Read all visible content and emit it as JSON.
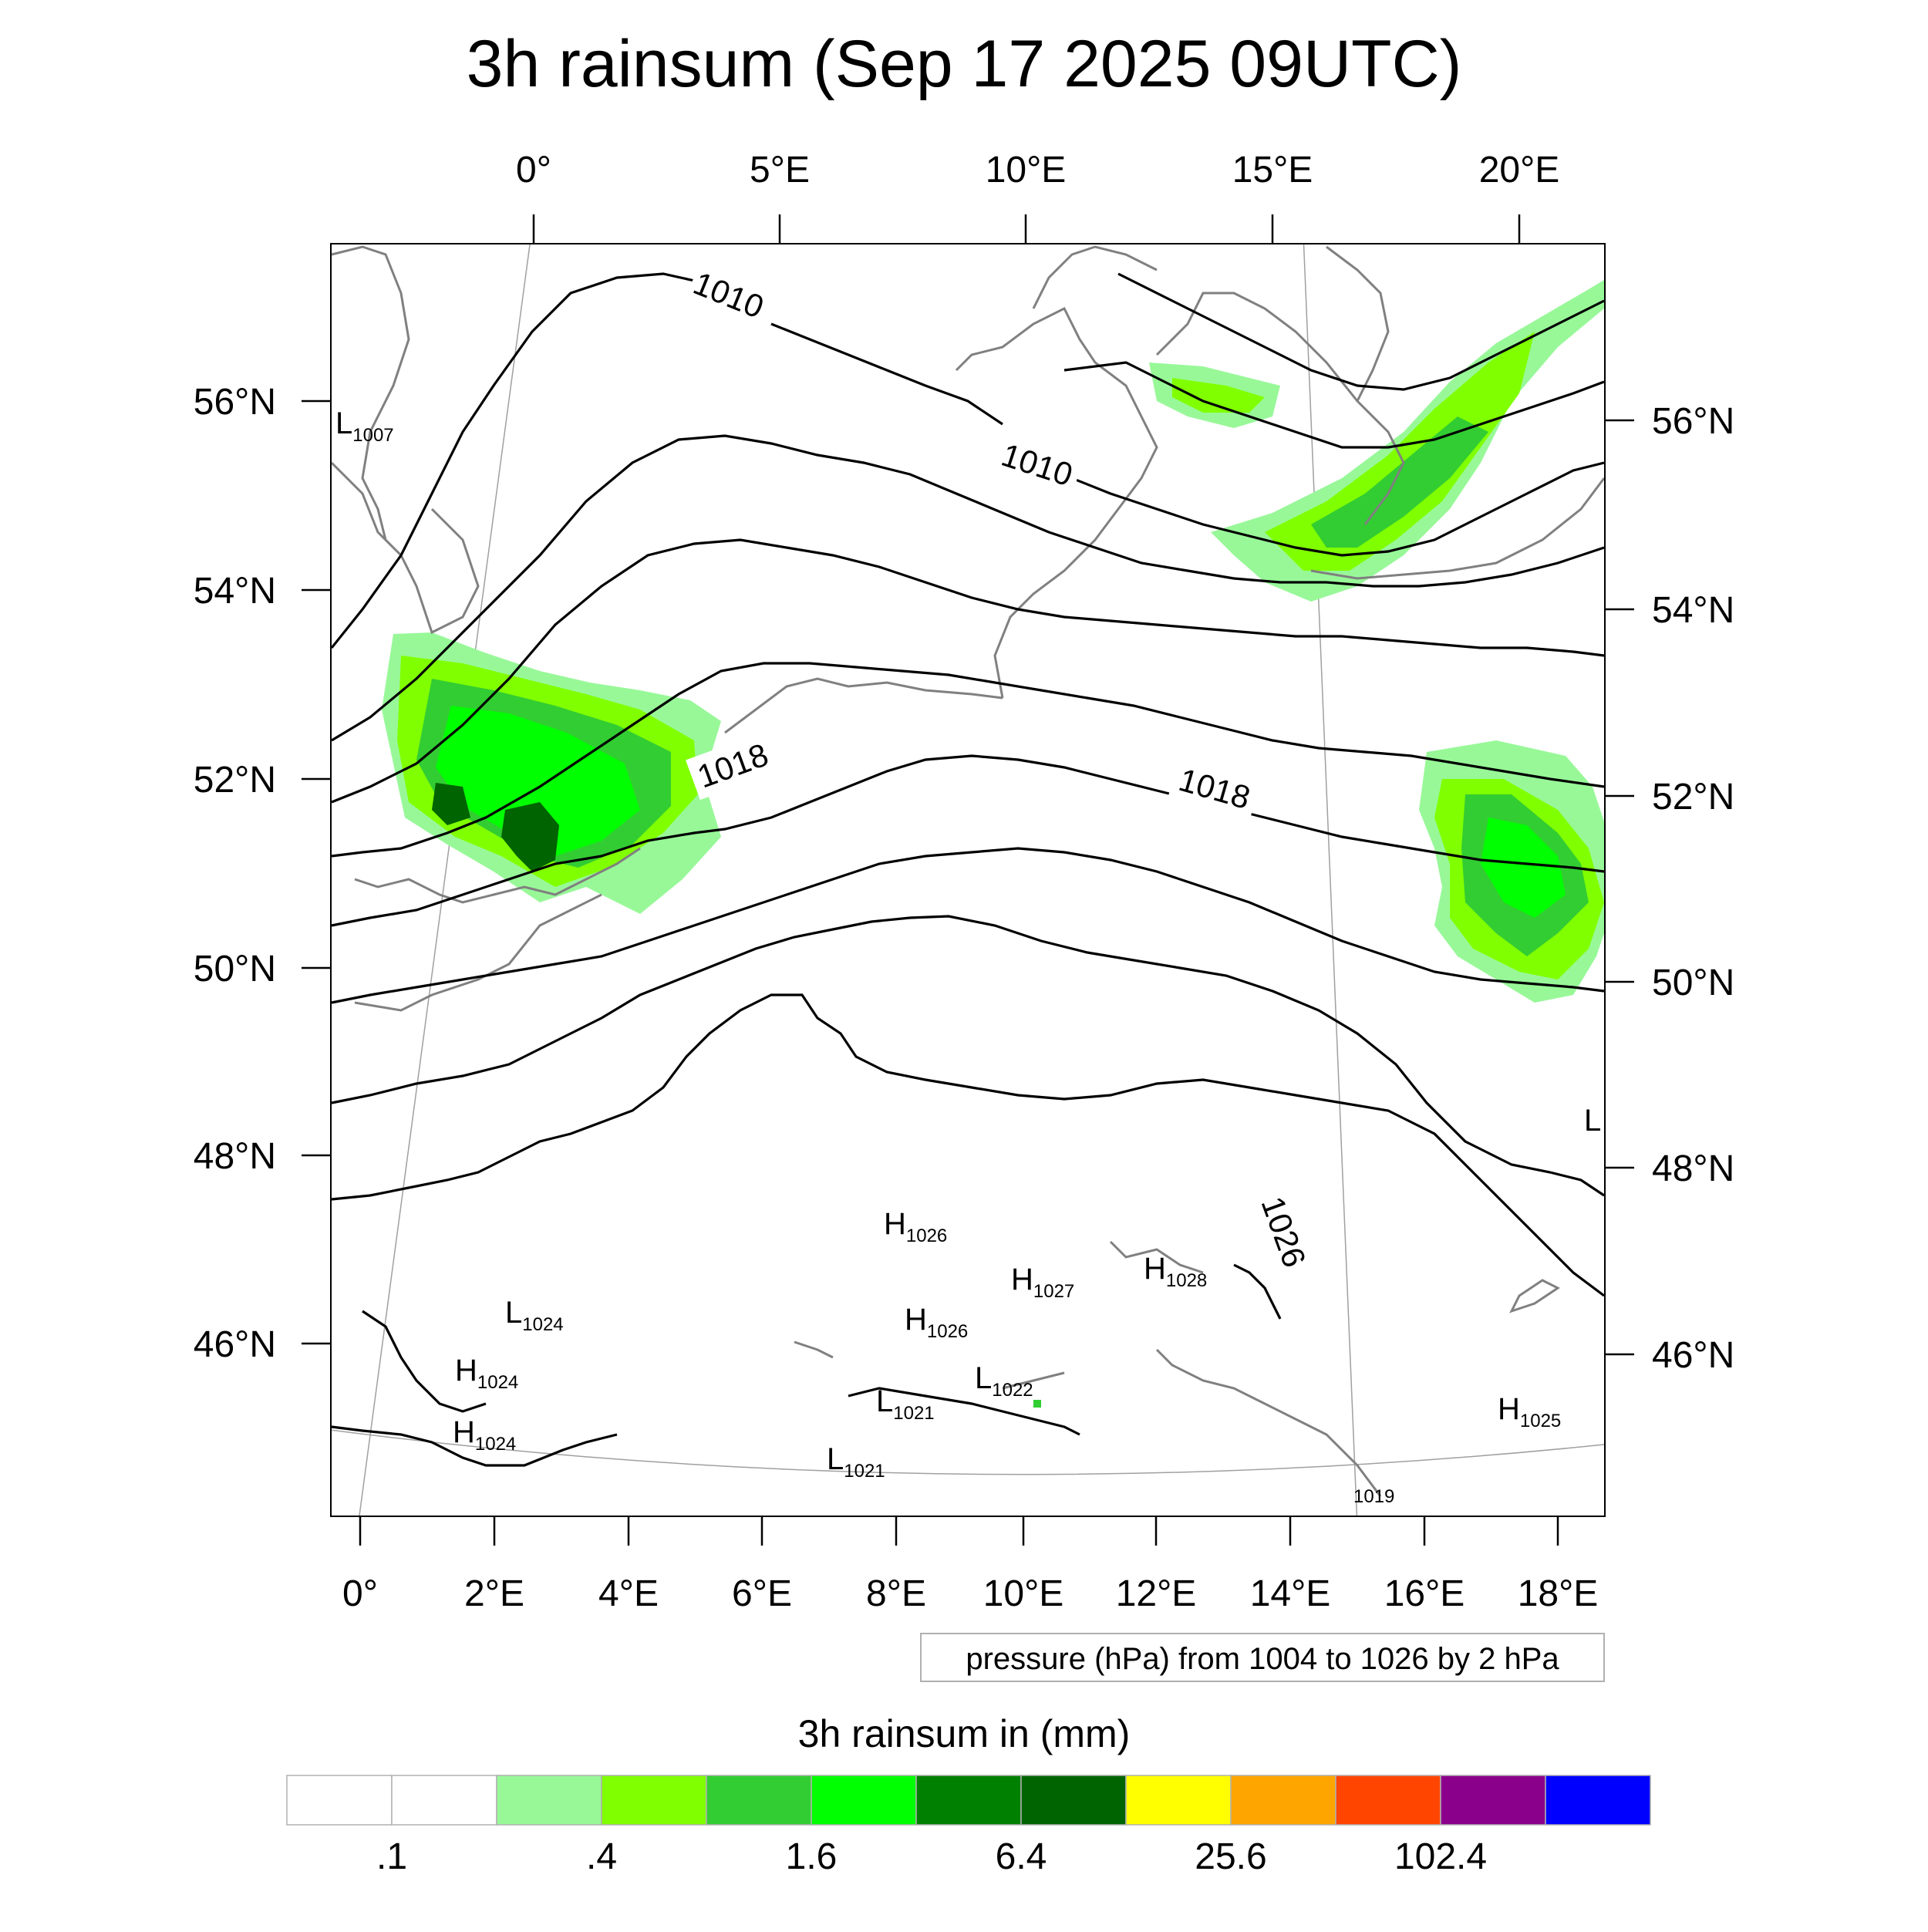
{
  "title": "3h rainsum (Sep 17 2025 09UTC)",
  "map": {
    "top_lon_labels": [
      "0°",
      "5°E",
      "10°E",
      "15°E",
      "20°E"
    ],
    "bottom_lon_labels": [
      "0°",
      "2°E",
      "4°E",
      "6°E",
      "8°E",
      "10°E",
      "12°E",
      "14°E",
      "16°E",
      "18°E"
    ],
    "left_lat_labels": [
      "56°N",
      "54°N",
      "52°N",
      "50°N",
      "48°N",
      "46°N"
    ],
    "right_lat_labels": [
      "56°N",
      "54°N",
      "52°N",
      "50°N",
      "48°N",
      "46°N"
    ],
    "isobar_labels": [
      "1010",
      "1010",
      "1018",
      "1018",
      "1026"
    ],
    "pressure_centers": [
      {
        "type": "L",
        "value": "1007"
      },
      {
        "type": "L",
        "value": "1024"
      },
      {
        "type": "H",
        "value": "1024"
      },
      {
        "type": "H",
        "value": "1024"
      },
      {
        "type": "H",
        "value": "1026"
      },
      {
        "type": "H",
        "value": "1027"
      },
      {
        "type": "H",
        "value": "1028"
      },
      {
        "type": "H",
        "value": "1026"
      },
      {
        "type": "L",
        "value": "1022"
      },
      {
        "type": "L",
        "value": "1021"
      },
      {
        "type": "L",
        "value": "1021"
      },
      {
        "type": "L",
        "value": ""
      },
      {
        "type": "H",
        "value": "1025"
      },
      {
        "type": "",
        "value": "1019"
      }
    ],
    "colors": {
      "coastline": "#808080",
      "isobar": "#000000",
      "graticule": "#a0a0a0"
    }
  },
  "contour_note": "pressure (hPa) from 1004 to 1026 by 2 hPa",
  "legend": {
    "title": "3h rainsum in (mm)",
    "labels": [
      ".1",
      ".4",
      "1.6",
      "6.4",
      "25.6",
      "102.4"
    ],
    "bins": [
      "#ffffff",
      "#ffffff",
      "#98f898",
      "#80ff00",
      "#32cd32",
      "#00ff00",
      "#008000",
      "#006400",
      "#ffff00",
      "#ffa500",
      "#ff4500",
      "#8b008b",
      "#0000ff"
    ]
  }
}
